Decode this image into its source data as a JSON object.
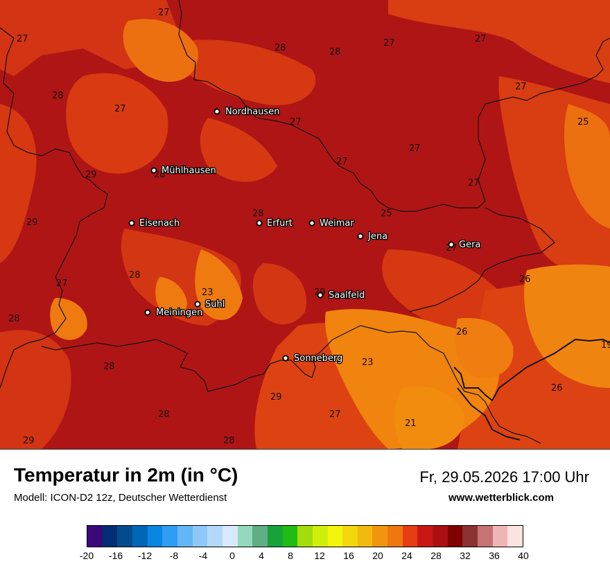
{
  "header": {
    "title": "Temperatur in 2m (in °C)",
    "model": "Modell: ICON-D2 12z, Deutscher Wetterdienst",
    "datetime": "Fr, 29.05.2026 17:00 Uhr",
    "website": "www.wetterblick.com"
  },
  "cities": [
    {
      "name": "Nordhausen",
      "id": "nordhausen"
    },
    {
      "name": "Mühlhausen",
      "id": "muehlhausen"
    },
    {
      "name": "Eisenach",
      "id": "eisenach"
    },
    {
      "name": "Erfurt",
      "id": "erfurt"
    },
    {
      "name": "Weimar",
      "id": "weimar"
    },
    {
      "name": "Jena",
      "id": "jena"
    },
    {
      "name": "Gera",
      "id": "gera"
    },
    {
      "name": "Suhl",
      "id": "suhl"
    },
    {
      "name": "Meiningen",
      "id": "meiningen"
    },
    {
      "name": "Saalfeld",
      "id": "saalfeld"
    },
    {
      "name": "Sonneberg",
      "id": "sonneberg"
    }
  ],
  "temperature_values": [
    "27",
    "27",
    "27",
    "28",
    "28",
    "27",
    "27",
    "28",
    "27",
    "27",
    "25",
    "27",
    "27",
    "27",
    "29",
    "28",
    "28",
    "29",
    "28",
    "25",
    "27",
    "27",
    "26",
    "29",
    "28",
    "28",
    "23",
    "29",
    "29",
    "26",
    "28",
    "23",
    "26",
    "28",
    "28",
    "27",
    "21",
    "29",
    "28",
    "19"
  ],
  "legend": {
    "colors": [
      "#3a0a7a",
      "#002d74",
      "#004c8c",
      "#0066b8",
      "#0a86e0",
      "#2e9df5",
      "#64b7f7",
      "#8fc7f8",
      "#b3d8fa",
      "#d7e9fc",
      "#95d9bd",
      "#5fae86",
      "#18a33a",
      "#21bb14",
      "#a4dd0c",
      "#cfee0a",
      "#f3f50d",
      "#f3d70c",
      "#f2ba0d",
      "#f1950e",
      "#ee7710",
      "#e63d13",
      "#c91715",
      "#ac1015",
      "#7f0000",
      "#8b3232",
      "#c57373",
      "#f1b4b4",
      "#fde2e2"
    ],
    "ticks": [
      "-20",
      "-16",
      "-12",
      "-8",
      "-4",
      "0",
      "4",
      "8",
      "12",
      "16",
      "20",
      "24",
      "28",
      "32",
      "36",
      "40"
    ]
  }
}
